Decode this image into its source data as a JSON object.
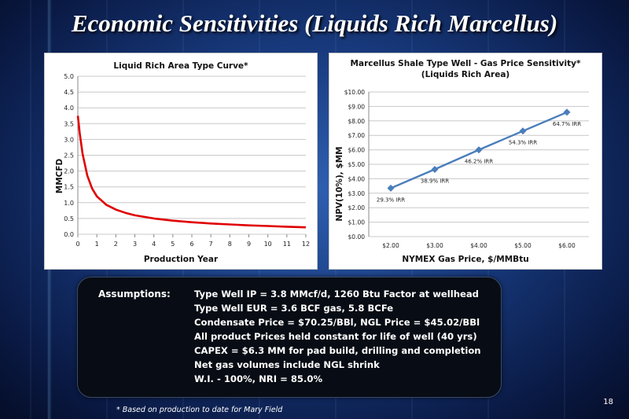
{
  "slide": {
    "title": "Economic Sensitivities (Liquids Rich Marcellus)",
    "page_number": "18",
    "footnote": "* Based on production to date for Mary Field"
  },
  "assumptions": {
    "label": "Assumptions:",
    "lines": [
      "Type Well IP = 3.8 MMcf/d, 1260 Btu Factor at wellhead",
      "Type Well EUR = 3.6 BCF gas, 5.8 BCFe",
      "Condensate Price = $70.25/BBl, NGL Price = $45.02/BBl",
      "All product Prices held constant for life of well (40 yrs)",
      "CAPEX = $6.3 MM for pad build, drilling and completion",
      "Net gas volumes include NGL shrink",
      "W.I. - 100%, NRI = 85.0%"
    ]
  },
  "chart_data": [
    {
      "type": "line",
      "title": "Liquid Rich Area Type Curve*",
      "xlabel": "Production Year",
      "ylabel": "MMCFD",
      "xlim": [
        0,
        12
      ],
      "ylim": [
        0,
        5
      ],
      "x_ticks": [
        "0",
        "1",
        "2",
        "3",
        "4",
        "5",
        "6",
        "7",
        "8",
        "9",
        "10",
        "11",
        "12"
      ],
      "y_ticks": [
        "0.0",
        "0.5",
        "1.0",
        "1.5",
        "2.0",
        "2.5",
        "3.0",
        "3.5",
        "4.0",
        "4.5",
        "5.0"
      ],
      "grid": true,
      "color": "#e00000",
      "series": [
        {
          "x": [
            0,
            0.1,
            0.25,
            0.5,
            0.75,
            1,
            1.5,
            2,
            2.5,
            3,
            4,
            5,
            6,
            7,
            8,
            9,
            10,
            11,
            12
          ],
          "values": [
            3.75,
            3.2,
            2.55,
            1.85,
            1.45,
            1.2,
            0.93,
            0.78,
            0.68,
            0.6,
            0.5,
            0.43,
            0.38,
            0.34,
            0.31,
            0.28,
            0.26,
            0.24,
            0.22
          ]
        }
      ]
    },
    {
      "type": "line",
      "title": "Marcellus Shale Type Well - Gas Price Sensitivity*",
      "subtitle": "(Liquids Rich Area)",
      "xlabel": "NYMEX Gas Price, $/MMBtu",
      "ylabel": "NPV(10%), $MM",
      "categories": [
        "$2.00",
        "$3.00",
        "$4.00",
        "$5.00",
        "$6.00"
      ],
      "ylim": [
        0,
        10
      ],
      "y_ticks": [
        "$0.00",
        "$1.00",
        "$2.00",
        "$3.00",
        "$4.00",
        "$5.00",
        "$6.00",
        "$7.00",
        "$8.00",
        "$9.00",
        "$10.00"
      ],
      "grid": true,
      "color": "#4a7ebb",
      "series": [
        {
          "values": [
            3.35,
            4.65,
            6.0,
            7.3,
            8.6
          ],
          "data_labels": [
            "29.3% IRR",
            "38.9% IRR",
            "46.2% IRR",
            "54.3% IRR",
            "64.7% IRR"
          ]
        }
      ]
    }
  ]
}
